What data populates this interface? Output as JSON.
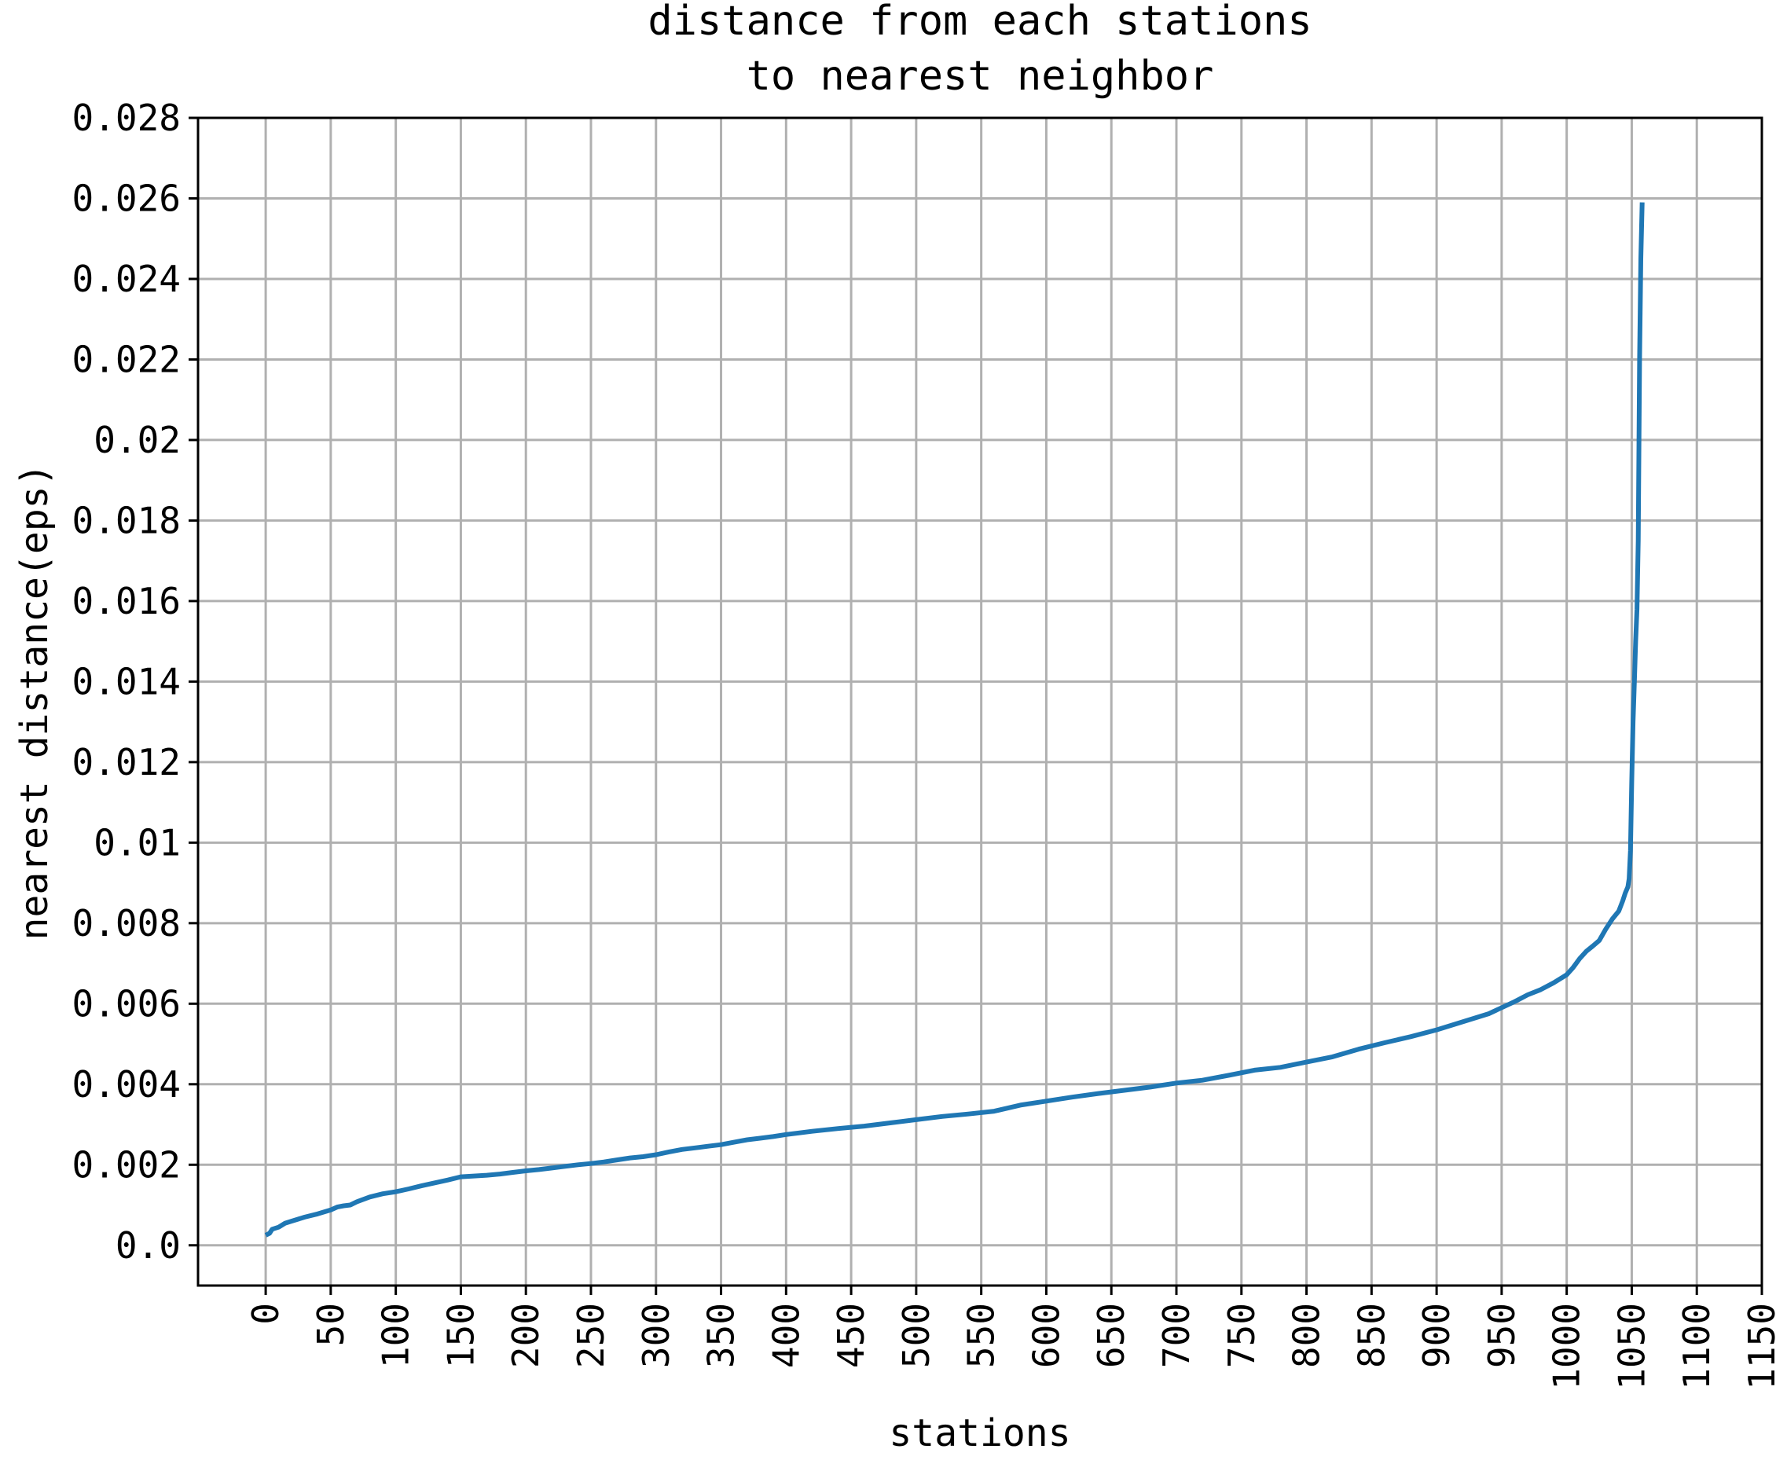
{
  "chart_data": {
    "type": "line",
    "title": [
      "distance from each stations",
      "to nearest neighbor"
    ],
    "xlabel": "stations",
    "ylabel": "nearest distance(eps)",
    "xlim": [
      -52,
      1150
    ],
    "ylim": [
      -0.001,
      0.028
    ],
    "grid": true,
    "xticks": [
      "0",
      "50",
      "100",
      "150",
      "200",
      "250",
      "300",
      "350",
      "400",
      "450",
      "500",
      "550",
      "600",
      "650",
      "700",
      "750",
      "800",
      "850",
      "900",
      "950",
      "1000",
      "1050",
      "1100",
      "1150"
    ],
    "xtick_values": [
      0,
      50,
      100,
      150,
      200,
      250,
      300,
      350,
      400,
      450,
      500,
      550,
      600,
      650,
      700,
      750,
      800,
      850,
      900,
      950,
      1000,
      1050,
      1100,
      1150
    ],
    "yticks": [
      "0.0",
      "0.002",
      "0.004",
      "0.006",
      "0.008",
      "0.01",
      "0.012",
      "0.014",
      "0.016",
      "0.018",
      "0.02",
      "0.022",
      "0.024",
      "0.026",
      "0.028"
    ],
    "ytick_values": [
      0.0,
      0.002,
      0.004,
      0.006,
      0.008,
      0.01,
      0.012,
      0.014,
      0.016,
      0.018,
      0.02,
      0.022,
      0.024,
      0.026,
      0.028
    ],
    "series": [
      {
        "color": "#1f77b4",
        "x": [
          0,
          3,
          5,
          10,
          15,
          20,
          30,
          40,
          50,
          55,
          60,
          65,
          70,
          80,
          90,
          100,
          110,
          120,
          130,
          140,
          150,
          160,
          170,
          180,
          190,
          200,
          210,
          220,
          230,
          240,
          250,
          260,
          270,
          280,
          290,
          300,
          310,
          320,
          330,
          340,
          350,
          360,
          370,
          380,
          390,
          400,
          420,
          440,
          460,
          480,
          500,
          520,
          540,
          560,
          580,
          600,
          620,
          640,
          660,
          680,
          700,
          720,
          740,
          760,
          780,
          800,
          820,
          840,
          860,
          880,
          900,
          920,
          940,
          960,
          970,
          980,
          990,
          1000,
          1005,
          1010,
          1015,
          1020,
          1025,
          1030,
          1035,
          1040,
          1043,
          1045,
          1047,
          1048,
          1049,
          1050,
          1051,
          1052,
          1053,
          1054,
          1055,
          1056,
          1057,
          1058
        ],
        "y": [
          0.00025,
          0.0003,
          0.0004,
          0.00045,
          0.00055,
          0.0006,
          0.0007,
          0.00078,
          0.00088,
          0.00095,
          0.00098,
          0.001,
          0.00108,
          0.0012,
          0.00128,
          0.00133,
          0.0014,
          0.00148,
          0.00155,
          0.00162,
          0.0017,
          0.00172,
          0.00174,
          0.00177,
          0.00181,
          0.00185,
          0.00188,
          0.00192,
          0.00196,
          0.002,
          0.00203,
          0.00207,
          0.00212,
          0.00217,
          0.0022,
          0.00225,
          0.00232,
          0.00238,
          0.00242,
          0.00246,
          0.0025,
          0.00256,
          0.00262,
          0.00266,
          0.0027,
          0.00275,
          0.00283,
          0.0029,
          0.00296,
          0.00304,
          0.00312,
          0.0032,
          0.00326,
          0.00333,
          0.00348,
          0.00358,
          0.00368,
          0.00377,
          0.00385,
          0.00393,
          0.00403,
          0.0041,
          0.00422,
          0.00435,
          0.00442,
          0.00455,
          0.00468,
          0.00487,
          0.00503,
          0.00518,
          0.00535,
          0.00555,
          0.00575,
          0.00605,
          0.00622,
          0.00635,
          0.00652,
          0.00672,
          0.0069,
          0.00712,
          0.0073,
          0.00743,
          0.00757,
          0.00785,
          0.0081,
          0.0083,
          0.00855,
          0.00875,
          0.0089,
          0.0091,
          0.0098,
          0.0115,
          0.013,
          0.014,
          0.015,
          0.0158,
          0.0175,
          0.022,
          0.0245,
          0.0259
        ]
      }
    ]
  }
}
